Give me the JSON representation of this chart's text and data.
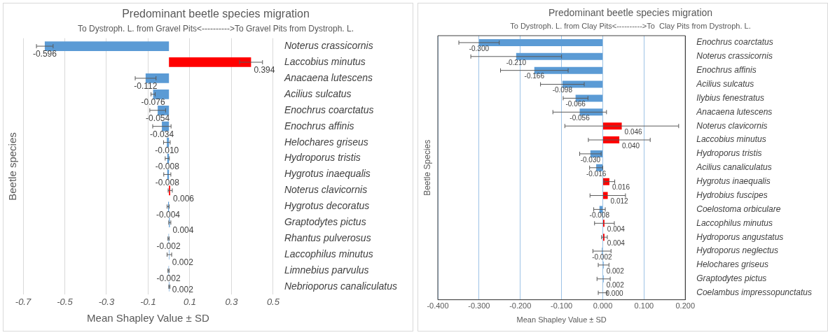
{
  "chart_data": [
    {
      "type": "bar",
      "orientation": "horizontal",
      "title": "Predominant beetle species migration",
      "subtitle": "To Dystroph. L. from Gravel Pits<---------->To Gravel Pits from Dystroph. L.",
      "xlabel": "Mean Shapley Value ± SD",
      "ylabel": "Beetle species",
      "categories": [
        "Noterus crassicornis",
        "Laccobius minutus",
        "Anacaena lutescens",
        "Acilius sulcatus",
        "Enochrus coarctatus",
        "Enochrus affinis",
        "Helochares griseus",
        "Hydroporus tristis",
        "Hygrotus inaequalis",
        "Noterus clavicornis",
        "Hygrotus decoratus",
        "Graptodytes pictus",
        "Rhantus pulverosus",
        "Laccophilus minutus",
        "Limnebius parvulus",
        "Nebrioporus canaliculatus"
      ],
      "values": [
        -0.596,
        0.394,
        -0.112,
        -0.076,
        -0.054,
        -0.034,
        -0.01,
        -0.008,
        -0.008,
        0.006,
        -0.004,
        0.004,
        -0.002,
        0.002,
        -0.002,
        0.002
      ],
      "colors": [
        "#5b9bd5",
        "#ff0000",
        "#5b9bd5",
        "#5b9bd5",
        "#5b9bd5",
        "#5b9bd5",
        "#5b9bd5",
        "#5b9bd5",
        "#5b9bd5",
        "#ff0000",
        "#5b9bd5",
        "#5b9bd5",
        "#5b9bd5",
        "#5b9bd5",
        "#5b9bd5",
        "#5b9bd5"
      ],
      "errors": [
        0.04,
        0.055,
        0.05,
        0.01,
        0.038,
        0.044,
        0.016,
        0.01,
        0.017,
        0.01,
        0.005,
        0.005,
        0.003,
        0.011,
        0.003,
        0.003
      ],
      "value_labels": [
        "-0.596",
        "0.394",
        "-0.112",
        "-0.076",
        "-0.054",
        "-0.034",
        "-0.010",
        "-0.008",
        "-0.008",
        "0.006",
        "-0.004",
        "0.004",
        "-0.002",
        "0.002",
        "-0.002",
        "0.002"
      ],
      "xlim": [
        -0.7,
        0.5
      ],
      "xticks": [
        -0.7,
        -0.5,
        -0.3,
        -0.1,
        0.1,
        0.3,
        0.5
      ],
      "grid": "x"
    },
    {
      "type": "bar",
      "orientation": "horizontal",
      "title": "Predominant beetle species migration",
      "subtitle": "To Dystroph. L. from Clay Pits<---------->To  Clay Pits from Dystroph. L.",
      "xlabel": "Mean Shapley Value ± SD",
      "ylabel": "Beetle Species",
      "categories": [
        "Enochrus coarctatus",
        "Noterus crassicornis",
        "Enochrus affinis",
        "Acilius sulcatus",
        "Ilybius fenestratus",
        "Anacaena lutescens",
        "Noterus clavicornis",
        "Laccobius minutus",
        "Hydroporus tristis",
        "Acilius canaliculatus",
        "Hygrotus inaequalis",
        "Hydrobius fuscipes",
        "Coelostoma orbiculare",
        "Laccophilus minutus",
        "Hydroporus angustatus",
        "Hydroporus neglectus",
        "Helochares griseus",
        "Graptodytes pictus",
        "Coelambus impressopunctatus"
      ],
      "values": [
        -0.3,
        -0.21,
        -0.166,
        -0.098,
        -0.066,
        -0.056,
        0.046,
        0.04,
        -0.03,
        -0.016,
        0.016,
        0.012,
        -0.008,
        0.004,
        0.004,
        -0.002,
        0.002,
        0.002,
        0.0
      ],
      "colors": [
        "#5b9bd5",
        "#5b9bd5",
        "#5b9bd5",
        "#5b9bd5",
        "#5b9bd5",
        "#5b9bd5",
        "#ff0000",
        "#ff0000",
        "#5b9bd5",
        "#5b9bd5",
        "#ff0000",
        "#ff0000",
        "#5b9bd5",
        "#ff0000",
        "#ff0000",
        "#5b9bd5",
        "#5b9bd5",
        "#5b9bd5",
        "#5b9bd5"
      ],
      "errors": [
        0.049,
        0.11,
        0.082,
        0.053,
        0.03,
        0.065,
        0.138,
        0.075,
        0.026,
        0.016,
        0.013,
        0.043,
        0.014,
        0.024,
        0.007,
        0.022,
        0.013,
        0.016,
        0.011
      ],
      "value_labels": [
        "-0.300",
        "-0.210",
        "-0.166",
        "-0.098",
        "-0.066",
        "-0.056",
        "0.046",
        "0.040",
        "-0.030",
        "-0.016",
        "0.016",
        "0.012",
        "-0.008",
        "0.004",
        "0.004",
        "-0.002",
        "0.002",
        "0.002",
        "0.000"
      ],
      "xlim": [
        -0.4,
        0.2
      ],
      "xticks": [
        {
          "value": -0.4,
          "label": "-0.400"
        },
        {
          "value": -0.3,
          "label": "-0.300"
        },
        {
          "value": -0.2,
          "label": "-0.200"
        },
        {
          "value": -0.1,
          "label": "-0.100"
        },
        {
          "value": 0,
          "label": "0.000"
        },
        {
          "value": 0.1,
          "label": "0.100"
        },
        {
          "value": 0.2,
          "label": "0.200"
        }
      ],
      "grid": "x"
    }
  ]
}
